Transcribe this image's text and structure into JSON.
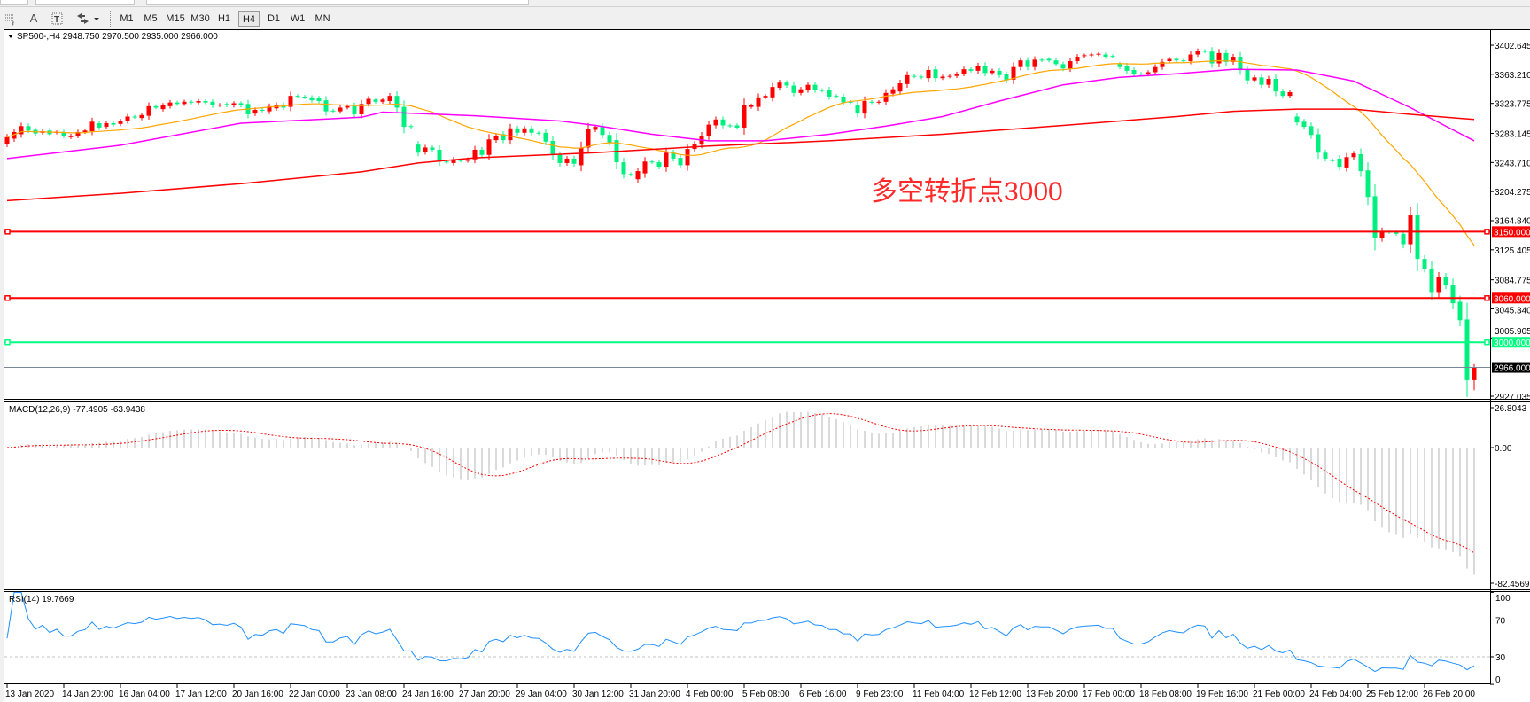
{
  "toolbar": {
    "tools": [
      {
        "icon": "period-separator-icon"
      },
      {
        "label": "A",
        "icon": "text-tool-icon"
      },
      {
        "label": "T",
        "icon": "text-label-tool-icon"
      },
      {
        "icon": "arrows-tool-icon"
      }
    ],
    "timeframes": [
      "M1",
      "M5",
      "M15",
      "M30",
      "H1",
      "H4",
      "D1",
      "W1",
      "MN"
    ],
    "active_timeframe": "H4"
  },
  "chart": {
    "title": "SP500-,H4  2948.750 2970.500 2935.000 2966.000",
    "annotation": "多空转折点3000",
    "annotation_color": "#ff2a2a"
  },
  "chart_data": {
    "type": "candlestick",
    "symbol": "SP500-",
    "timeframe": "H4",
    "colors": {
      "up": "#ff0000",
      "down": "#00f080",
      "ma_fast": "#ffa500",
      "ma_mid": "#ff00ff",
      "ma_slow": "#ff0000",
      "rsi": "#1e90ff",
      "macd_hist": "#c0c0c0",
      "macd_signal": "#ff0000"
    },
    "last_bar": {
      "open": 2948.75,
      "high": 2970.5,
      "low": 2935.0,
      "close": 2966.0
    },
    "bars_open_close": [
      [
        3269,
        3278
      ],
      [
        3276,
        3285
      ],
      [
        3282,
        3293
      ],
      [
        3293,
        3287
      ],
      [
        3288,
        3283
      ],
      [
        3284,
        3286
      ],
      [
        3287,
        3282
      ],
      [
        3284,
        3285
      ],
      [
        3285,
        3280
      ],
      [
        3278,
        3280
      ],
      [
        3280,
        3285
      ],
      [
        3285,
        3287
      ],
      [
        3286,
        3299
      ],
      [
        3297,
        3291
      ],
      [
        3292,
        3297
      ],
      [
        3297,
        3295
      ],
      [
        3296,
        3300
      ],
      [
        3300,
        3306
      ],
      [
        3306,
        3305
      ],
      [
        3304,
        3308
      ],
      [
        3307,
        3320
      ],
      [
        3320,
        3318
      ],
      [
        3316,
        3321
      ],
      [
        3320,
        3325
      ],
      [
        3325,
        3323
      ],
      [
        3323,
        3326
      ],
      [
        3326,
        3325
      ],
      [
        3325,
        3327
      ],
      [
        3327,
        3325
      ],
      [
        3326,
        3321
      ],
      [
        3321,
        3322
      ],
      [
        3323,
        3321
      ],
      [
        3321,
        3324
      ],
      [
        3324,
        3321
      ],
      [
        3323,
        3309
      ],
      [
        3310,
        3315
      ],
      [
        3315,
        3314
      ],
      [
        3313,
        3320
      ],
      [
        3317,
        3322
      ],
      [
        3322,
        3318
      ],
      [
        3319,
        3334
      ],
      [
        3334,
        3333
      ],
      [
        3333,
        3332
      ],
      [
        3332,
        3328
      ],
      [
        3331,
        3327
      ],
      [
        3328,
        3313
      ],
      [
        3314,
        3313
      ],
      [
        3313,
        3318
      ],
      [
        3318,
        3320
      ],
      [
        3320,
        3309
      ],
      [
        3309,
        3323
      ],
      [
        3323,
        3330
      ],
      [
        3329,
        3326
      ],
      [
        3326,
        3329
      ],
      [
        3327,
        3334
      ],
      [
        3334,
        3318
      ],
      [
        3319,
        3292
      ],
      [
        3293,
        3292
      ],
      [
        3268,
        3257
      ],
      [
        3258,
        3264
      ],
      [
        3264,
        3261
      ],
      [
        3261,
        3245
      ],
      [
        3245,
        3244
      ],
      [
        3243,
        3248
      ],
      [
        3247,
        3246
      ],
      [
        3246,
        3248
      ],
      [
        3248,
        3261
      ],
      [
        3261,
        3254
      ],
      [
        3254,
        3275
      ],
      [
        3274,
        3280
      ],
      [
        3282,
        3274
      ],
      [
        3274,
        3290
      ],
      [
        3290,
        3284
      ],
      [
        3284,
        3290
      ],
      [
        3290,
        3284
      ],
      [
        3284,
        3283
      ],
      [
        3284,
        3272
      ],
      [
        3273,
        3254
      ],
      [
        3254,
        3243
      ],
      [
        3243,
        3249
      ],
      [
        3249,
        3242
      ],
      [
        3240,
        3264
      ],
      [
        3264,
        3289
      ],
      [
        3288,
        3292
      ],
      [
        3292,
        3281
      ],
      [
        3281,
        3271
      ],
      [
        3274,
        3244
      ],
      [
        3244,
        3228
      ],
      [
        3228,
        3227
      ],
      [
        3221,
        3232
      ],
      [
        3229,
        3245
      ],
      [
        3245,
        3244
      ],
      [
        3244,
        3238
      ],
      [
        3238,
        3257
      ],
      [
        3257,
        3249
      ],
      [
        3250,
        3240
      ],
      [
        3240,
        3262
      ],
      [
        3262,
        3269
      ],
      [
        3268,
        3280
      ],
      [
        3280,
        3295
      ],
      [
        3294,
        3302
      ],
      [
        3302,
        3294
      ],
      [
        3294,
        3293
      ],
      [
        3294,
        3291
      ],
      [
        3291,
        3321
      ],
      [
        3319,
        3321
      ],
      [
        3319,
        3332
      ],
      [
        3332,
        3334
      ],
      [
        3332,
        3346
      ],
      [
        3345,
        3352
      ],
      [
        3352,
        3348
      ],
      [
        3348,
        3338
      ],
      [
        3338,
        3343
      ],
      [
        3342,
        3349
      ],
      [
        3349,
        3342
      ],
      [
        3342,
        3341
      ],
      [
        3342,
        3333
      ],
      [
        3334,
        3333
      ],
      [
        3333,
        3325
      ],
      [
        3326,
        3325
      ],
      [
        3322,
        3310
      ],
      [
        3310,
        3327
      ],
      [
        3326,
        3325
      ],
      [
        3325,
        3326
      ],
      [
        3326,
        3338
      ],
      [
        3337,
        3343
      ],
      [
        3340,
        3351
      ],
      [
        3350,
        3362
      ],
      [
        3361,
        3360
      ],
      [
        3360,
        3359
      ],
      [
        3358,
        3369
      ],
      [
        3370,
        3358
      ],
      [
        3358,
        3360
      ],
      [
        3360,
        3361
      ],
      [
        3361,
        3364
      ],
      [
        3364,
        3370
      ],
      [
        3370,
        3368
      ],
      [
        3368,
        3375
      ],
      [
        3375,
        3365
      ],
      [
        3365,
        3368
      ],
      [
        3368,
        3362
      ],
      [
        3363,
        3355
      ],
      [
        3356,
        3373
      ],
      [
        3373,
        3382
      ],
      [
        3382,
        3373
      ],
      [
        3373,
        3383
      ],
      [
        3383,
        3382
      ],
      [
        3384,
        3382
      ],
      [
        3382,
        3377
      ],
      [
        3377,
        3371
      ],
      [
        3371,
        3381
      ],
      [
        3381,
        3387
      ],
      [
        3388,
        3389
      ],
      [
        3389,
        3390
      ],
      [
        3390,
        3391
      ],
      [
        3390,
        3387
      ],
      [
        3388,
        3387
      ],
      [
        3377,
        3373
      ],
      [
        3375,
        3368
      ],
      [
        3369,
        3363
      ],
      [
        3364,
        3363
      ],
      [
        3363,
        3366
      ],
      [
        3366,
        3373
      ],
      [
        3373,
        3380
      ],
      [
        3381,
        3384
      ],
      [
        3384,
        3382
      ],
      [
        3382,
        3381
      ],
      [
        3381,
        3390
      ],
      [
        3390,
        3395
      ],
      [
        3395,
        3394
      ],
      [
        3394,
        3378
      ],
      [
        3378,
        3392
      ],
      [
        3392,
        3380
      ],
      [
        3380,
        3387
      ],
      [
        3387,
        3369
      ],
      [
        3369,
        3355
      ],
      [
        3355,
        3359
      ],
      [
        3359,
        3349
      ],
      [
        3349,
        3357
      ],
      [
        3357,
        3340
      ],
      [
        3340,
        3334
      ],
      [
        3334,
        3339
      ],
      [
        3306,
        3298
      ],
      [
        3299,
        3292
      ],
      [
        3293,
        3281
      ],
      [
        3282,
        3257
      ],
      [
        3257,
        3249
      ],
      [
        3247,
        3246
      ],
      [
        3249,
        3238
      ],
      [
        3237,
        3251
      ],
      [
        3251,
        3256
      ],
      [
        3255,
        3232
      ],
      [
        3233,
        3197
      ],
      [
        3198,
        3141
      ],
      [
        3141,
        3151
      ],
      [
        3150,
        3149
      ],
      [
        3149,
        3147
      ],
      [
        3147,
        3133
      ],
      [
        3133,
        3172
      ],
      [
        3172,
        3113
      ],
      [
        3113,
        3100
      ],
      [
        3100,
        3067
      ],
      [
        3067,
        3088
      ],
      [
        3089,
        3077
      ],
      [
        3078,
        3053
      ],
      [
        3055,
        3030
      ],
      [
        3031,
        2948.75
      ],
      [
        2948.75,
        2966
      ]
    ],
    "ma_fast_period": 21,
    "ma_mid_samples": [
      [
        0,
        3249
      ],
      [
        16,
        3267
      ],
      [
        33,
        3297
      ],
      [
        50,
        3305
      ],
      [
        53,
        3312
      ],
      [
        66,
        3307
      ],
      [
        78,
        3300
      ],
      [
        83,
        3294
      ],
      [
        91,
        3282
      ],
      [
        99,
        3273
      ],
      [
        107,
        3273
      ],
      [
        116,
        3282
      ],
      [
        124,
        3293
      ],
      [
        132,
        3306
      ],
      [
        140,
        3327
      ],
      [
        149,
        3349
      ],
      [
        157,
        3359
      ],
      [
        165,
        3364
      ],
      [
        173,
        3370
      ],
      [
        182,
        3369
      ],
      [
        190,
        3354
      ],
      [
        198,
        3318
      ],
      [
        207,
        3273
      ]
    ],
    "ma_slow_samples": [
      [
        0,
        3192
      ],
      [
        16,
        3202
      ],
      [
        33,
        3215
      ],
      [
        50,
        3231
      ],
      [
        58,
        3243
      ],
      [
        66,
        3250
      ],
      [
        83,
        3257
      ],
      [
        99,
        3266
      ],
      [
        116,
        3273
      ],
      [
        132,
        3282
      ],
      [
        149,
        3294
      ],
      [
        165,
        3306
      ],
      [
        173,
        3313
      ],
      [
        182,
        3316
      ],
      [
        190,
        3316
      ],
      [
        198,
        3309
      ],
      [
        207,
        3302
      ]
    ],
    "price_axis": {
      "ticks": [
        "3402.645",
        "3363.210",
        "3323.775",
        "3283.145",
        "3243.710",
        "3204.275",
        "3164.840",
        "3125.405",
        "3084.775",
        "3045.340",
        "3005.905",
        "2927.035"
      ],
      "max": 3402.645,
      "min": 2927.035
    },
    "levels": [
      {
        "label": "3150.000",
        "price": 3150.0,
        "color": "#ff0000"
      },
      {
        "label": "3060.000",
        "price": 3060.0,
        "color": "#ff0000"
      },
      {
        "label": "3000.000",
        "price": 3000.0,
        "color": "#00ff80"
      }
    ],
    "bid_line": {
      "label": "2966.000",
      "price": 2966.0,
      "color": "#778899"
    },
    "macd": {
      "label": "MACD(12,26,9) -77.4905 -63.9438",
      "fast": 12,
      "slow": 26,
      "signal": 9,
      "axis_max": "26.8043",
      "axis_zero": "0.00",
      "axis_min": "-82.4569"
    },
    "rsi": {
      "label": "RSI(14) 19.7669",
      "period": 14,
      "levels": [
        70,
        30
      ],
      "axis_ticks": [
        "100",
        "70",
        "30",
        "0"
      ]
    },
    "time_labels": [
      "13 Jan 2020",
      "14 Jan 20:00",
      "16 Jan 04:00",
      "17 Jan 12:00",
      "20 Jan 16:00",
      "22 Jan 00:00",
      "23 Jan 08:00",
      "24 Jan 16:00",
      "27 Jan 20:00",
      "29 Jan 04:00",
      "30 Jan 12:00",
      "31 Jan 20:00",
      "4 Feb 00:00",
      "5 Feb 08:00",
      "6 Feb 16:00",
      "9 Feb 23:00",
      "11 Feb 04:00",
      "12 Feb 12:00",
      "13 Feb 20:00",
      "17 Feb 00:00",
      "18 Feb 08:00",
      "19 Feb 16:00",
      "21 Feb 00:00",
      "24 Feb 04:00",
      "25 Feb 12:00",
      "26 Feb 20:00"
    ]
  }
}
